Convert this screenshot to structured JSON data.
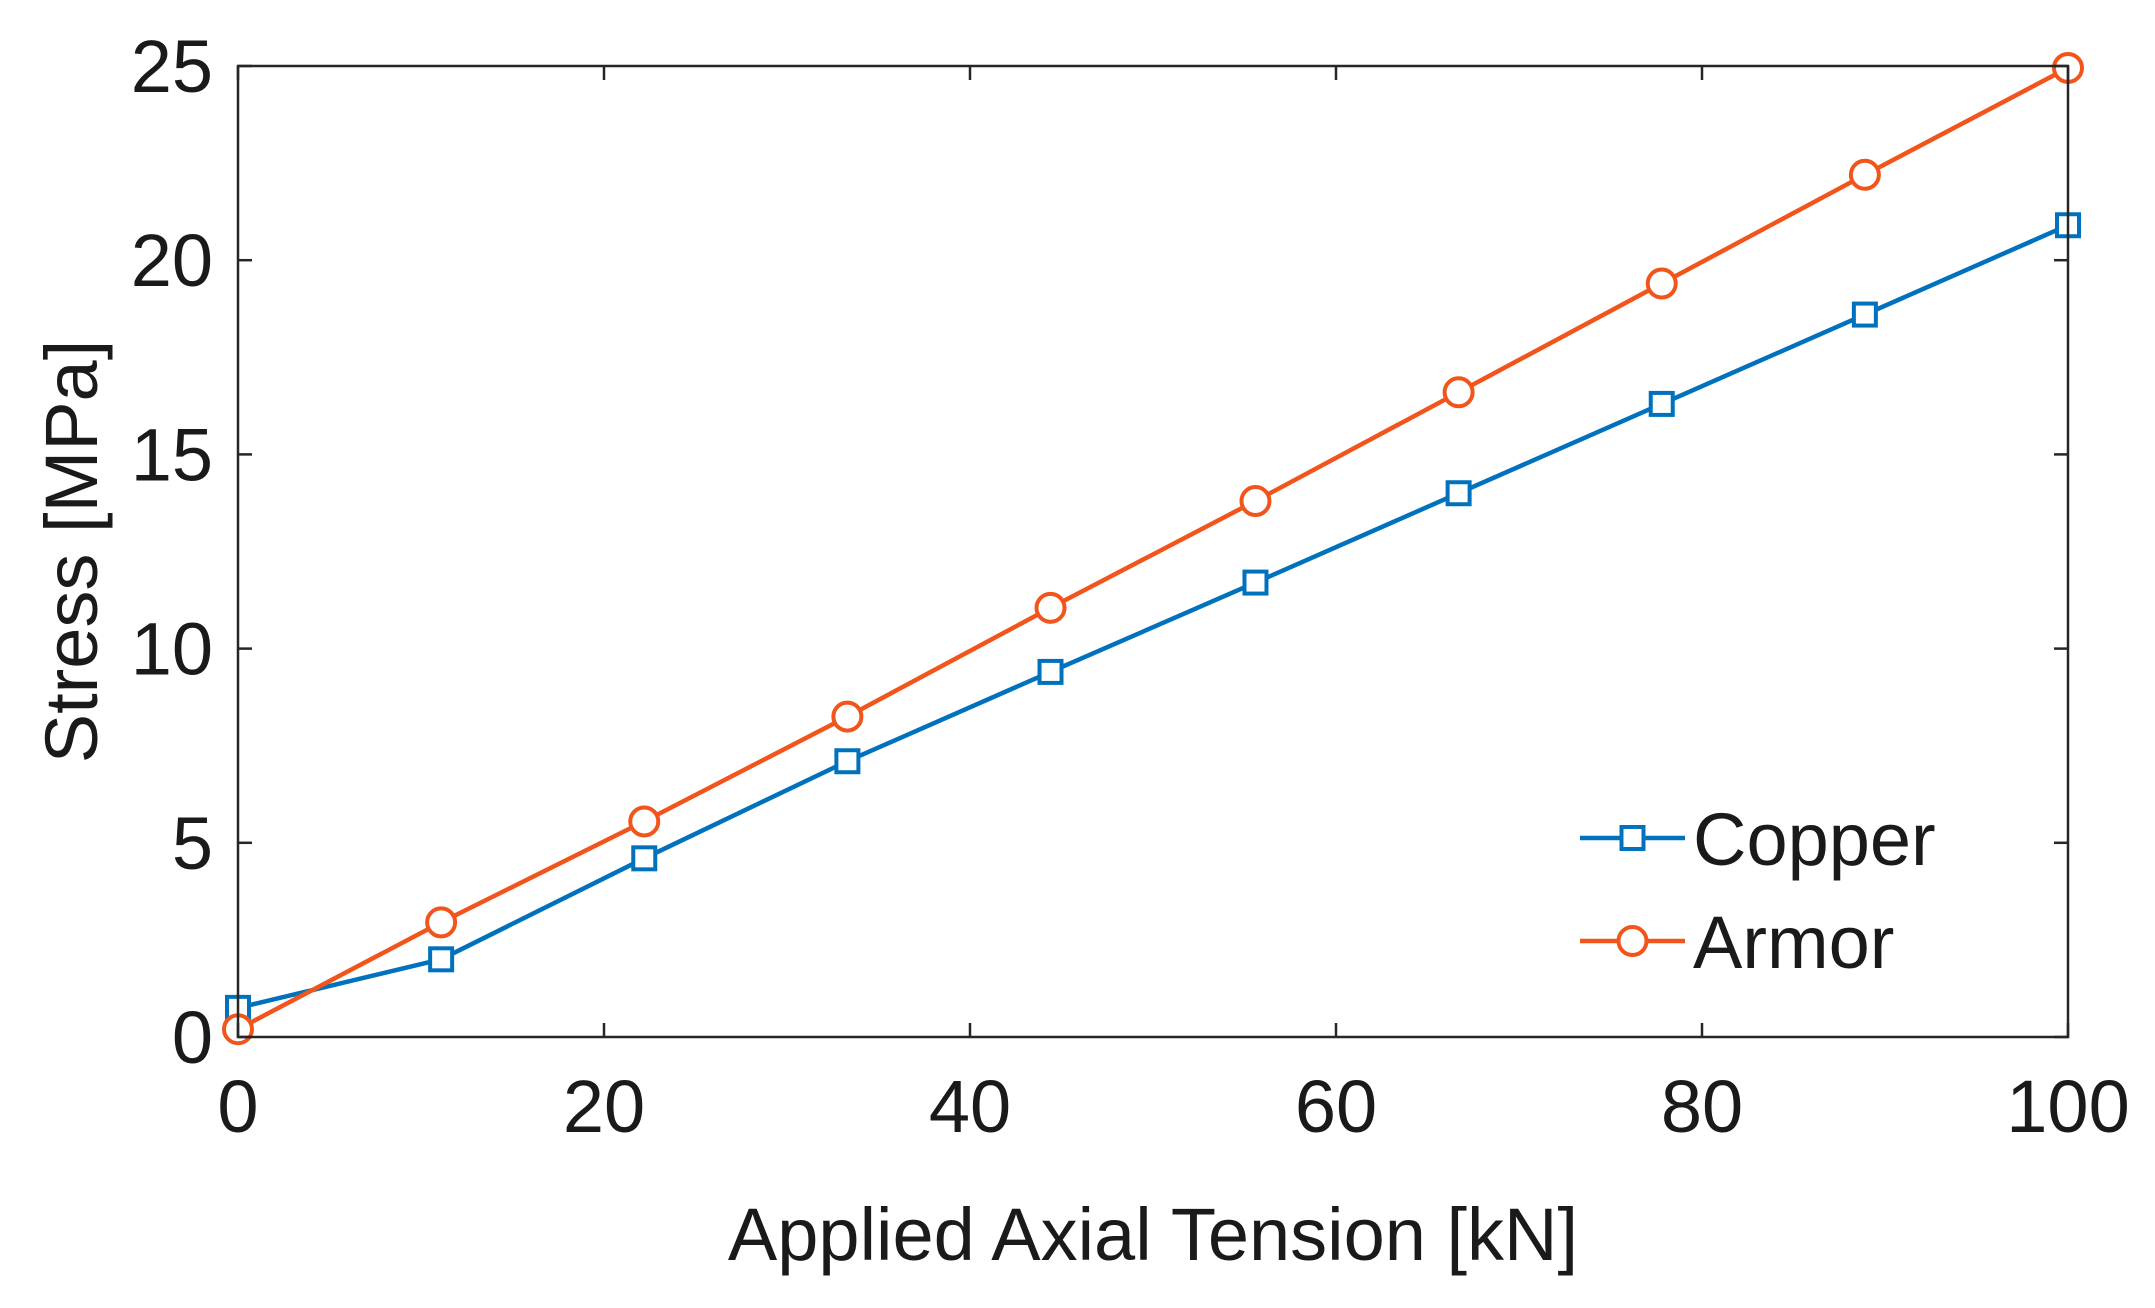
{
  "chart_data": {
    "type": "line",
    "title": "",
    "xlabel": "Applied Axial Tension [kN]",
    "ylabel": "Stress [MPa]",
    "xlim": [
      0,
      100
    ],
    "ylim": [
      0,
      25
    ],
    "xticks": [
      0,
      20,
      40,
      60,
      80,
      100
    ],
    "yticks": [
      0,
      5,
      10,
      15,
      20,
      25
    ],
    "grid": false,
    "legend_position": "bottom-right",
    "x": [
      0,
      11.1,
      22.2,
      33.3,
      44.4,
      55.6,
      66.7,
      77.8,
      88.9,
      100
    ],
    "series": [
      {
        "name": "Copper",
        "color": "#0072BD",
        "marker": "square",
        "values": [
          0.75,
          2.0,
          4.6,
          7.1,
          9.4,
          11.7,
          14.0,
          16.3,
          18.6,
          20.9
        ]
      },
      {
        "name": "Armor",
        "color": "#F2551B",
        "marker": "circle",
        "values": [
          0.2,
          2.95,
          5.55,
          8.25,
          11.05,
          13.8,
          16.6,
          19.4,
          22.2,
          24.95
        ]
      }
    ]
  }
}
